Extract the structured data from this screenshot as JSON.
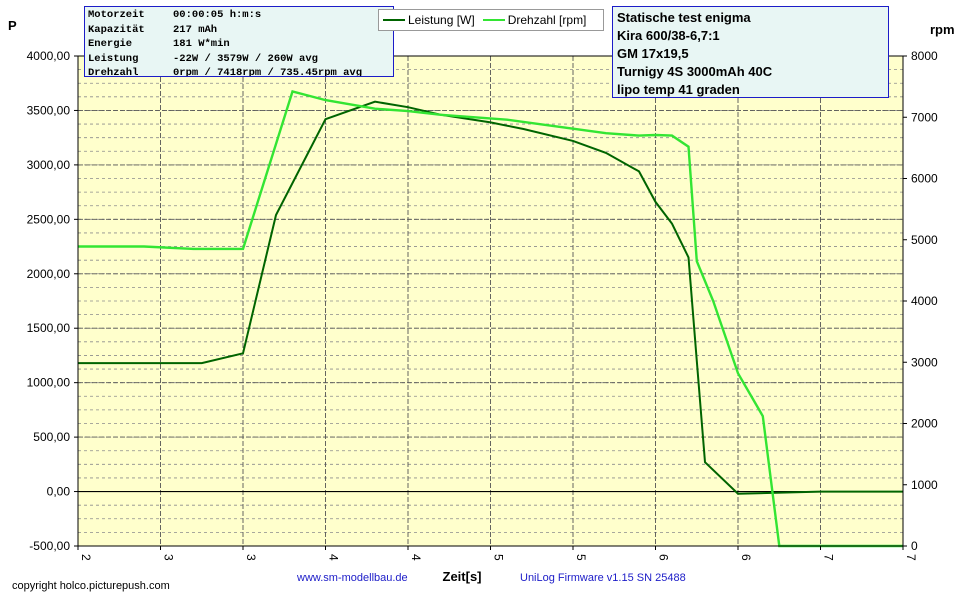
{
  "info": [
    {
      "key": "Motorzeit",
      "value": "00:00:05 h:m:s"
    },
    {
      "key": "Kapazität",
      "value": "217 mAh"
    },
    {
      "key": "Energie",
      "value": "181 W*min"
    },
    {
      "key": "Leistung",
      "value": "-22W / 3579W / 260W avg"
    },
    {
      "key": "Drehzahl",
      "value": "0rpm / 7418rpm / 735.45rpm avg"
    }
  ],
  "notes": [
    "Statische test enigma",
    "Kira 600/38-6,7:1",
    "GM 17x19,5",
    "Turnigy 4S 3000mAh 40C",
    "lipo temp 41 graden"
  ],
  "footer": {
    "copyright": "copyright holco.picturepush.com",
    "website": "www.sm-modellbau.de",
    "firmware": "UniLog Firmware v1.15 SN 25488"
  },
  "colors": {
    "leistung": "#006400",
    "drehzahl": "#33e533",
    "plot_bg": "#ffffcc",
    "info_border": "#1c1cc8"
  },
  "chart_data": {
    "type": "line",
    "xlabel": "Zeit[s]",
    "ylabel_left": "P",
    "ylabel_right": "rpm",
    "xlim": [
      2,
      7
    ],
    "ylim_left": [
      -500,
      4000
    ],
    "ylim_right": [
      0,
      8000
    ],
    "x_ticks": [
      "2",
      "3",
      "3",
      "4",
      "4",
      "5",
      "5",
      "6",
      "6",
      "7",
      "7"
    ],
    "y_left_ticks": [
      "-500,00",
      "0,00",
      "500,00",
      "1000,00",
      "1500,00",
      "2000,00",
      "2500,00",
      "3000,00",
      "3500,00",
      "4000,00"
    ],
    "y_right_ticks": [
      "0",
      "1000",
      "2000",
      "3000",
      "4000",
      "5000",
      "6000",
      "7000",
      "8000"
    ],
    "grid": true,
    "legend": "top",
    "series": [
      {
        "name": "Leistung [W]",
        "axis": "left",
        "color": "#006400",
        "x": [
          2.0,
          2.3,
          2.6,
          2.75,
          3.0,
          3.2,
          3.5,
          3.8,
          4.0,
          4.2,
          4.5,
          4.7,
          5.0,
          5.2,
          5.4,
          5.5,
          5.6,
          5.7,
          5.75,
          5.8,
          6.0,
          6.5,
          7.0
        ],
        "y": [
          1180,
          1180,
          1180,
          1180,
          1270,
          2540,
          3420,
          3580,
          3530,
          3460,
          3390,
          3330,
          3220,
          3110,
          2940,
          2660,
          2460,
          2150,
          1200,
          270,
          -20,
          0,
          0
        ]
      },
      {
        "name": "Drehzahl [rpm]",
        "axis": "right",
        "color": "#33e533",
        "x": [
          2.0,
          2.4,
          2.7,
          3.0,
          3.3,
          3.5,
          3.8,
          4.0,
          4.2,
          4.6,
          4.9,
          5.2,
          5.4,
          5.5,
          5.6,
          5.7,
          5.75,
          5.85,
          6.0,
          6.15,
          6.25,
          6.4,
          6.6,
          7.0
        ],
        "y": [
          4890,
          4890,
          4850,
          4850,
          7420,
          7280,
          7140,
          7100,
          7040,
          6960,
          6850,
          6740,
          6700,
          6710,
          6700,
          6520,
          4650,
          4000,
          2820,
          2120,
          0,
          0,
          0,
          0
        ]
      }
    ]
  }
}
